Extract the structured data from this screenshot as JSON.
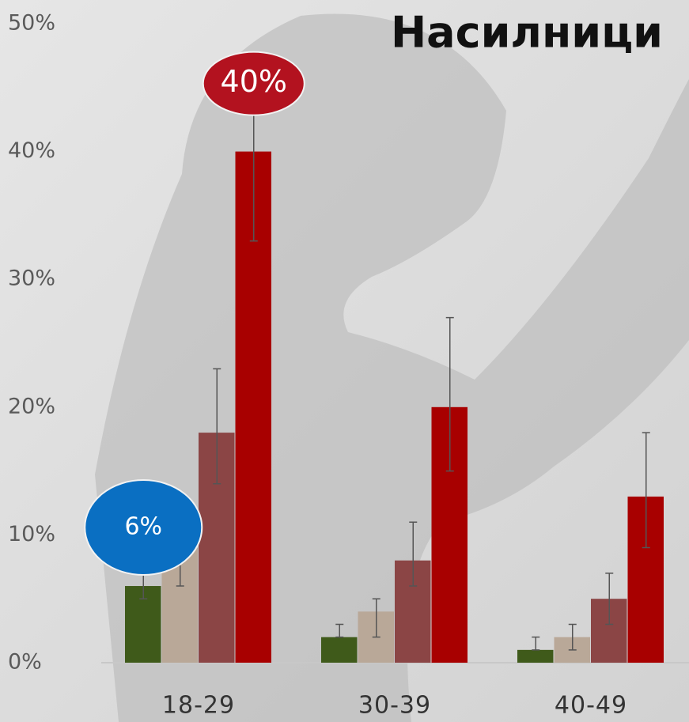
{
  "chart_data": {
    "type": "bar",
    "title": "Насилници",
    "categories": [
      "18-29",
      "30-39",
      "40-49"
    ],
    "series": [
      {
        "color": "#3f5a1a",
        "values": [
          6,
          2,
          1
        ],
        "lower": [
          5,
          2,
          1
        ],
        "upper": [
          7,
          3,
          2
        ]
      },
      {
        "color": "#b9a898",
        "values": [
          9,
          4,
          2
        ],
        "lower": [
          6,
          2,
          1
        ],
        "upper": [
          12,
          5,
          3
        ]
      },
      {
        "color": "#8b4545",
        "values": [
          18,
          8,
          5
        ],
        "lower": [
          14,
          6,
          3
        ],
        "upper": [
          23,
          11,
          7
        ]
      },
      {
        "color": "#a80000",
        "values": [
          40,
          20,
          13
        ],
        "lower": [
          33,
          15,
          9
        ],
        "upper": [
          47,
          27,
          18
        ]
      }
    ],
    "ylim": [
      0,
      50
    ],
    "yticks": [
      {
        "value": 0,
        "label": "0%"
      },
      {
        "value": 10,
        "label": "10%"
      },
      {
        "value": 20,
        "label": "20%"
      },
      {
        "value": 30,
        "label": "30%"
      },
      {
        "value": 40,
        "label": "40%"
      },
      {
        "value": 50,
        "label": "50%"
      }
    ],
    "annotations": [
      {
        "text": "6%",
        "series": 0,
        "category": 0,
        "color": "#0a6fc2"
      },
      {
        "text": "40%",
        "series": 3,
        "category": 0,
        "color": "#b3121f"
      }
    ]
  }
}
